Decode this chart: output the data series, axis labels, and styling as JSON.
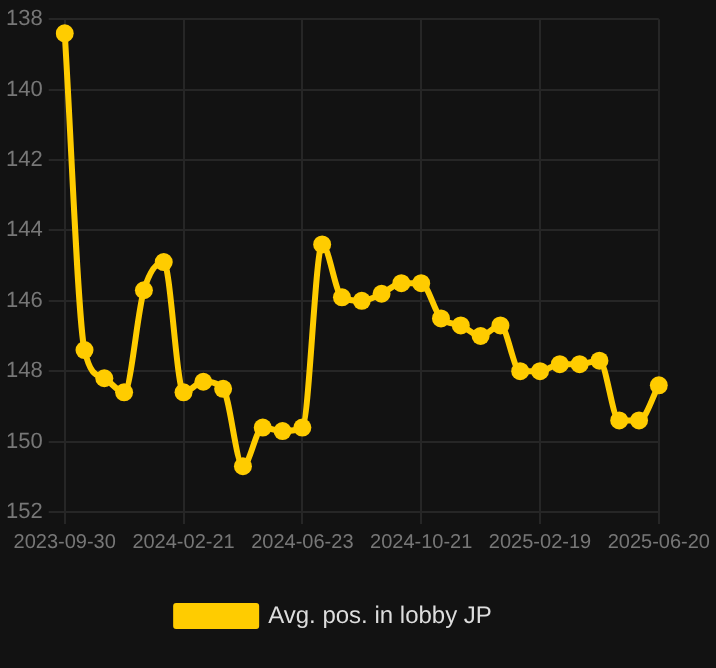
{
  "chart_data": {
    "type": "line",
    "categories": [
      "2023-09-30",
      null,
      null,
      null,
      null,
      null,
      "2024-02-21",
      null,
      null,
      null,
      null,
      null,
      "2024-06-23",
      null,
      null,
      null,
      null,
      null,
      "2024-10-21",
      null,
      null,
      null,
      null,
      null,
      "2025-02-19",
      null,
      null,
      null,
      null,
      null,
      "2025-06-20"
    ],
    "series": [
      {
        "name": "Avg. pos. in lobby JP",
        "color": "#ffcc00",
        "values": [
          138.4,
          147.4,
          148.2,
          148.6,
          145.7,
          144.9,
          148.6,
          148.3,
          148.5,
          150.7,
          149.6,
          149.7,
          149.6,
          144.4,
          145.9,
          146.0,
          145.8,
          145.5,
          145.5,
          146.5,
          146.7,
          147.0,
          146.7,
          148.0,
          148.0,
          147.8,
          147.8,
          147.7,
          149.4,
          149.4,
          148.4
        ]
      }
    ],
    "ylim": [
      152,
      138
    ],
    "yticks": [
      138,
      140,
      142,
      144,
      146,
      148,
      150,
      152
    ],
    "grid": true,
    "legend": "bottom",
    "marker": "circle"
  }
}
